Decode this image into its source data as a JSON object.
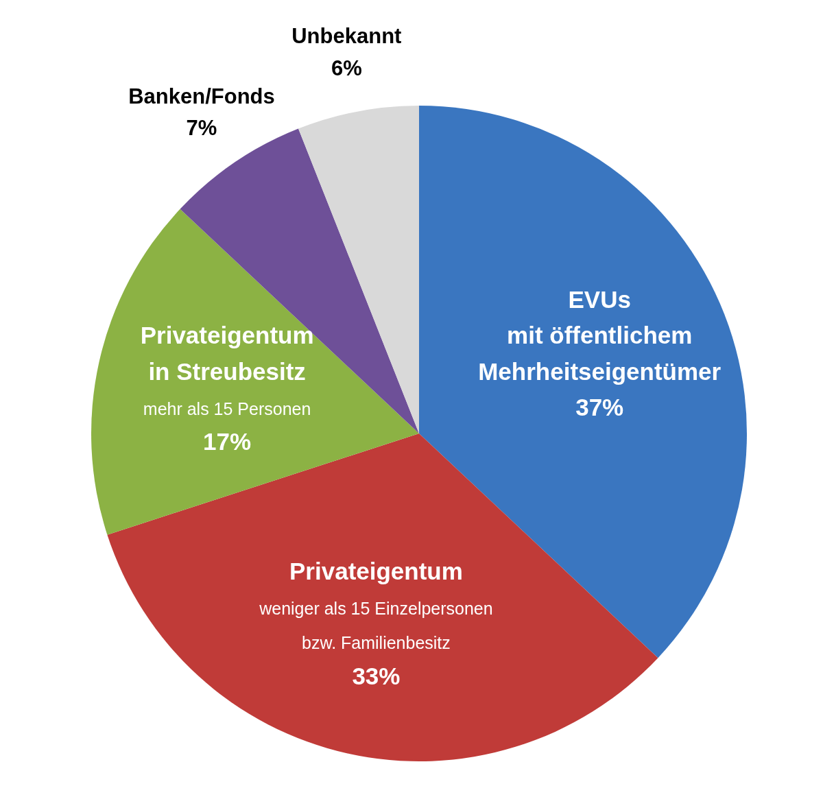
{
  "chart_data": {
    "type": "pie",
    "categories": [
      "EVUs\nmit öffentlichem\nMehrheitseigentümer",
      "Privateigentum\n\nweniger als 15 Einzelpersonen\nbzw. Familienbesitz",
      "Privateigentum\nin Streubesitz\n\nmehr als 15 Personen",
      "Banken/Fonds",
      "Unbekannt"
    ],
    "values": [
      37,
      33,
      17,
      7,
      6
    ],
    "colors": [
      "#3a76c0",
      "#c03b38",
      "#8cb244",
      "#6e5098",
      "#d9d9d9"
    ],
    "value_labels": [
      "37%",
      "33%",
      "17%",
      "7%",
      "6%"
    ]
  }
}
